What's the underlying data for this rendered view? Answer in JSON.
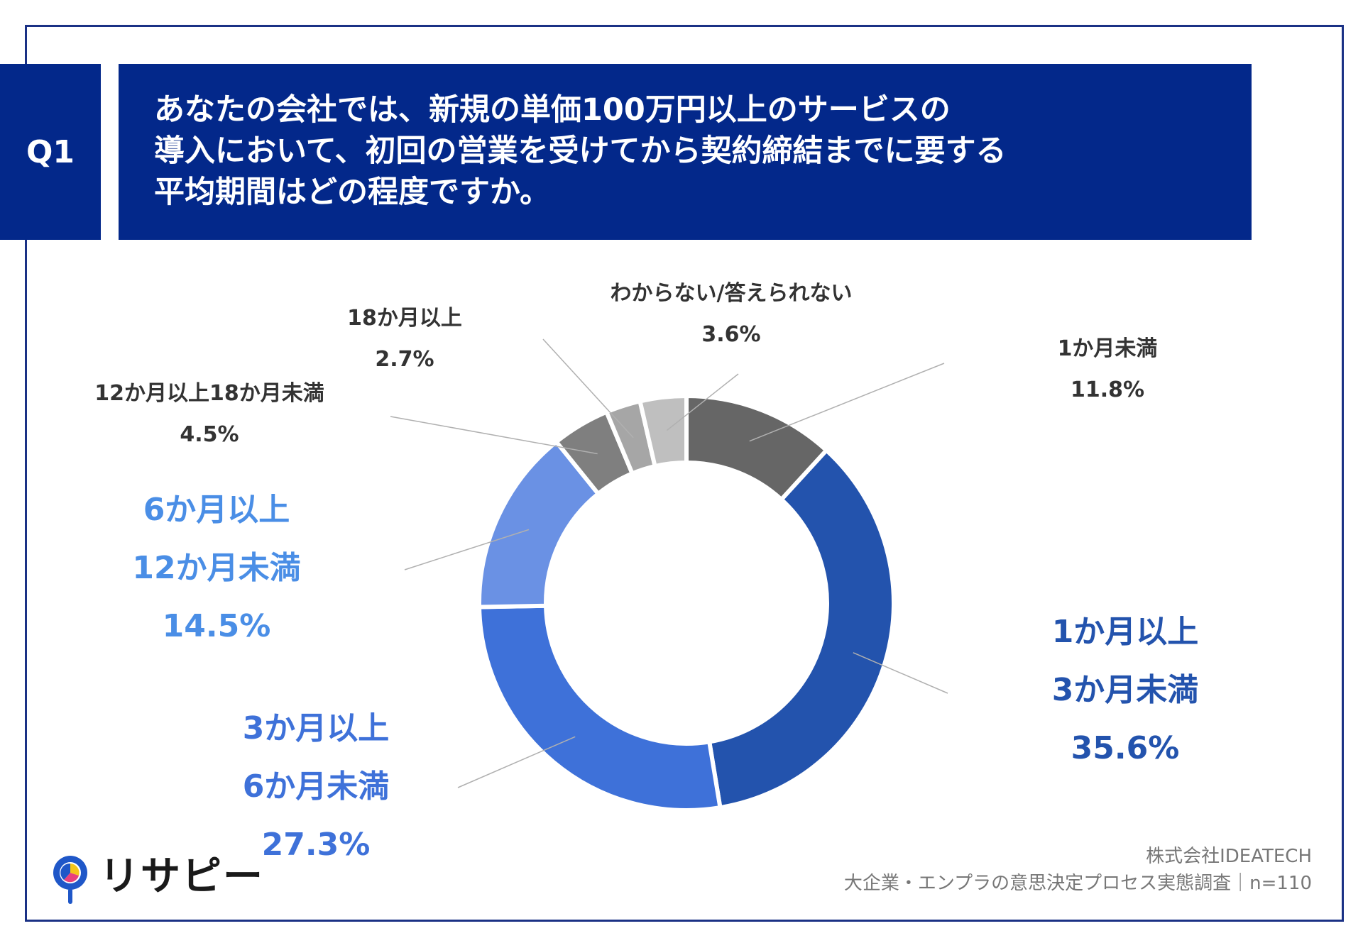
{
  "question": {
    "badge": "Q1",
    "lines": [
      "あなたの会社では、新規の単価100万円以上のサービスの",
      "導入において、初回の営業を受けてから契約締結までに要する",
      "平均期間はどの程度ですか。"
    ]
  },
  "chart_data": {
    "type": "pie",
    "donut": true,
    "unit": "%",
    "slices": [
      {
        "label": "1か月未満",
        "label_lines": [
          "1か月未満"
        ],
        "value": 11.8,
        "value_label": "11.8%",
        "color": "#666666",
        "label_color": "#333333"
      },
      {
        "label": "1か月以上3か月未満",
        "label_lines": [
          "1か月以上",
          "3か月未満"
        ],
        "value": 35.6,
        "value_label": "35.6%",
        "color": "#2353ad",
        "label_color": "#2353ad"
      },
      {
        "label": "3か月以上6か月未満",
        "label_lines": [
          "3か月以上",
          "6か月未満"
        ],
        "value": 27.3,
        "value_label": "27.3%",
        "color": "#3e71d9",
        "label_color": "#3e71d9"
      },
      {
        "label": "6か月以上12か月未満",
        "label_lines": [
          "6か月以上",
          "12か月未満"
        ],
        "value": 14.5,
        "value_label": "14.5%",
        "color": "#6a91e4",
        "label_color": "#4a8ee6"
      },
      {
        "label": "12か月以上18か月未満",
        "label_lines": [
          "12か月以上18か月未満"
        ],
        "value": 4.5,
        "value_label": "4.5%",
        "color": "#7f7f7f",
        "label_color": "#333333"
      },
      {
        "label": "18か月以上",
        "label_lines": [
          "18か月以上"
        ],
        "value": 2.7,
        "value_label": "2.7%",
        "color": "#a6a6a6",
        "label_color": "#333333"
      },
      {
        "label": "わからない/答えられない",
        "label_lines": [
          "わからない/答えられない"
        ],
        "value": 3.6,
        "value_label": "3.6%",
        "color": "#bfbfbf",
        "label_color": "#333333"
      }
    ]
  },
  "footer": {
    "company": "株式会社IDEATECH",
    "survey": "大企業・エンプラの意思決定プロセス実態調査｜n=110"
  },
  "logo": {
    "text": "リサピー",
    "icon": "magnifier-pie-icon",
    "colors": {
      "ring": "#1f57c8",
      "yellow": "#f5c518",
      "pink": "#e8417c",
      "blue": "#1f57c8"
    }
  }
}
